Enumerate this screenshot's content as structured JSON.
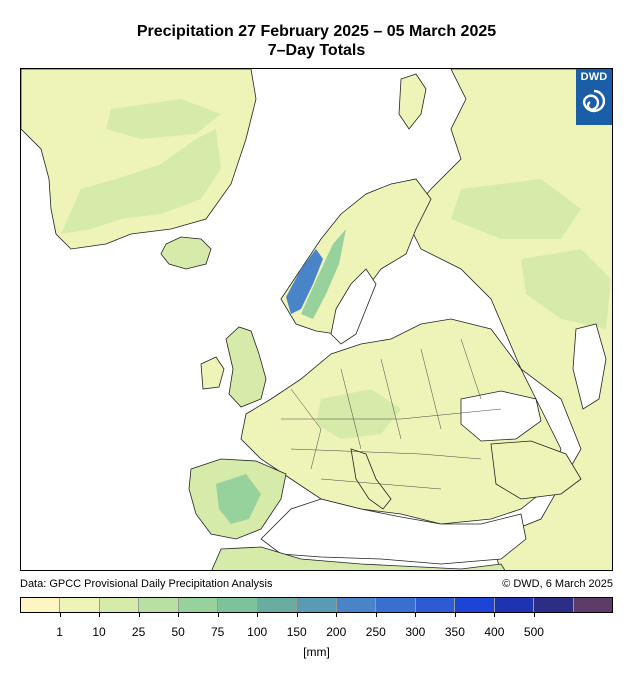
{
  "title": "Precipitation 27 February 2025 – 05 March 2025",
  "subtitle": "7–Day Totals",
  "logo": {
    "text": "DWD",
    "icon": "dwd-swirl-icon",
    "color": "#1b5ea8"
  },
  "source": "Data: GPCC Provisional Daily Precipitation Analysis",
  "credit": "© DWD, 6 March 2025",
  "legend": {
    "colors": [
      "#fdf6c2",
      "#eef3b8",
      "#d6ebaa",
      "#b9e0a4",
      "#97d19c",
      "#7cc39b",
      "#68ad9f",
      "#5a9ab5",
      "#4a84c8",
      "#3b6fcf",
      "#2d5bd4",
      "#1c44d6",
      "#1d33b0",
      "#2c2e86",
      "#5e3c6a"
    ],
    "labels": [
      "1",
      "10",
      "25",
      "50",
      "75",
      "100",
      "150",
      "200",
      "250",
      "300",
      "350",
      "400",
      "500"
    ],
    "unit": "[mm]"
  },
  "map": {
    "sea_color": "#ffffff",
    "land_color": "#eef3b8",
    "wet_color": "#b9e0a4",
    "heavy_color": "#4a84c8"
  }
}
